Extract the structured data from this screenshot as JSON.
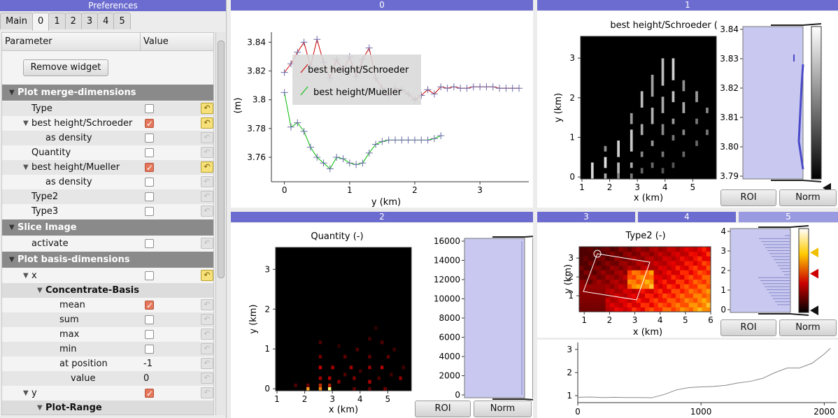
{
  "prefs": {
    "title": "Preferences",
    "tabs": [
      "Main",
      "0",
      "1",
      "2",
      "3",
      "4",
      "5"
    ],
    "active_tab": "0",
    "header": {
      "param": "Parameter",
      "value": "Value"
    },
    "remove_button": "Remove widget",
    "rows": [
      {
        "label": "Plot merge-dimensions",
        "kind": "section"
      },
      {
        "label": "Type",
        "kind": "item",
        "checked": false,
        "undo": true
      },
      {
        "label": "best height/Schroeder",
        "kind": "item",
        "checked": true,
        "undo": true,
        "expand": true
      },
      {
        "label": "as density",
        "kind": "item",
        "checked": false,
        "undo": false
      },
      {
        "label": "Quantity",
        "kind": "item",
        "checked": false,
        "undo": false
      },
      {
        "label": "best height/Mueller",
        "kind": "item",
        "checked": true,
        "undo": true,
        "expand": true
      },
      {
        "label": "as density",
        "kind": "item",
        "checked": false,
        "undo": false
      },
      {
        "label": "Type2",
        "kind": "item",
        "checked": false,
        "undo": false
      },
      {
        "label": "Type3",
        "kind": "item",
        "checked": false,
        "undo": false
      },
      {
        "label": "Slice Image",
        "kind": "section"
      },
      {
        "label": "activate",
        "kind": "item",
        "checked": false,
        "undo": false
      },
      {
        "label": "Plot basis-dimensions",
        "kind": "section"
      },
      {
        "label": "x",
        "kind": "item",
        "checked": false,
        "undo": true,
        "expand": true
      },
      {
        "label": "Concentrate-Basis",
        "kind": "subsec"
      },
      {
        "label": "mean",
        "kind": "item",
        "checked": true,
        "undo": false
      },
      {
        "label": "sum",
        "kind": "item",
        "checked": false,
        "undo": false
      },
      {
        "label": "max",
        "kind": "item",
        "checked": false,
        "undo": false
      },
      {
        "label": "min",
        "kind": "item",
        "checked": false,
        "undo": false
      },
      {
        "label": "at position",
        "kind": "value",
        "value": "-1"
      },
      {
        "label": "value",
        "kind": "value",
        "value": "0"
      },
      {
        "label": "y",
        "kind": "item",
        "checked": true,
        "undo": false,
        "expand": true
      },
      {
        "label": "Plot-Range",
        "kind": "subsec"
      }
    ]
  },
  "panels": {
    "p0": {
      "title": "0"
    },
    "p1": {
      "title": "1",
      "plot_title": "best height/Schroeder (m)",
      "xlabel": "x (km)",
      "ylabel": "y (km)",
      "xticks": [
        "1",
        "2",
        "3",
        "4",
        "5"
      ],
      "yticks": [
        "0",
        "1",
        "2",
        "3"
      ],
      "cbar_ticks": [
        "3.84",
        "3.83",
        "3.82",
        "3.81",
        "3.80",
        "3.79"
      ],
      "roi": "ROI",
      "norm": "Norm"
    },
    "p2": {
      "title": "2",
      "plot_title": "Quantity (-)",
      "xlabel": "x (km)",
      "ylabel": "y (km)",
      "xticks": [
        "1",
        "2",
        "3",
        "4",
        "5"
      ],
      "yticks": [
        "0",
        "1",
        "2",
        "3"
      ],
      "cbar_ticks": [
        "16000",
        "14000",
        "12000",
        "10000",
        "8000",
        "6000",
        "4000",
        "2000",
        "0"
      ],
      "roi": "ROI",
      "norm": "Norm"
    },
    "p3": {
      "tabs": [
        "3",
        "4",
        "5"
      ],
      "plot_title": "Type2 (-)",
      "xlabel": "x (km)",
      "ylabel": "y (km)",
      "xticks": [
        "1",
        "2",
        "3",
        "4",
        "5",
        "6"
      ],
      "yticks": [
        "1",
        "2",
        "3"
      ],
      "cbar_ticks": [
        "4",
        "3",
        "2",
        "1",
        "0"
      ],
      "roi": "ROI",
      "norm": "Norm"
    },
    "p5": {
      "xticks": [
        "0",
        "1000",
        "2000"
      ],
      "yticks": [
        "1",
        "2",
        "3"
      ]
    }
  },
  "chart_data": [
    {
      "type": "line",
      "xlabel": "y (km)",
      "ylabel": "(m)",
      "xlim": [
        -0.2,
        3.75
      ],
      "ylim": [
        3.743,
        3.847
      ],
      "xticks": [
        "0",
        "1",
        "2",
        "3"
      ],
      "yticks": [
        "3.84",
        "3.82",
        "3.8",
        "3.78",
        "3.76"
      ],
      "legend_position": "top-left",
      "series": [
        {
          "name": "best height/Schroeder",
          "color": "#cc0000",
          "x": [
            0,
            0.1,
            0.2,
            0.3,
            0.4,
            0.5,
            0.6,
            0.7,
            0.8,
            0.9,
            1.0,
            1.1,
            1.2,
            1.3,
            1.4,
            1.5,
            1.6,
            1.7,
            1.8,
            1.9,
            2.0,
            2.1,
            2.2,
            2.3,
            2.4,
            2.5,
            2.6,
            2.7,
            2.8,
            2.9,
            3.0,
            3.1,
            3.2,
            3.3,
            3.4,
            3.5,
            3.6
          ],
          "y": [
            3.819,
            3.825,
            3.833,
            3.84,
            3.823,
            3.842,
            3.826,
            3.815,
            3.828,
            3.82,
            3.83,
            3.816,
            3.828,
            3.836,
            3.815,
            3.808,
            3.803,
            3.808,
            3.807,
            3.804,
            3.8,
            3.803,
            3.807,
            3.804,
            3.809,
            3.808,
            3.809,
            3.808,
            3.808,
            3.809,
            3.809,
            3.809,
            3.809,
            3.808,
            3.808,
            3.808,
            3.808
          ]
        },
        {
          "name": "best height/Mueller",
          "color": "#00bb00",
          "x": [
            0,
            0.1,
            0.2,
            0.3,
            0.4,
            0.5,
            0.6,
            0.7,
            0.8,
            0.9,
            1.0,
            1.1,
            1.2,
            1.3,
            1.4,
            1.5,
            1.6,
            1.7,
            1.8,
            1.9,
            2.0,
            2.1,
            2.2,
            2.3,
            2.4
          ],
          "y": [
            3.805,
            3.781,
            3.784,
            3.778,
            3.767,
            3.76,
            3.756,
            3.752,
            3.76,
            3.759,
            3.756,
            3.755,
            3.756,
            3.763,
            3.769,
            3.771,
            3.772,
            3.772,
            3.772,
            3.772,
            3.772,
            3.772,
            3.772,
            3.773,
            3.775
          ]
        }
      ]
    },
    {
      "type": "line",
      "xlim": [
        0,
        2100
      ],
      "ylim": [
        0.7,
        3.3
      ],
      "xticks": [
        "0",
        "1000",
        "2000"
      ],
      "yticks": [
        "1",
        "2",
        "3"
      ],
      "series": [
        {
          "color": "#888888",
          "x": [
            0,
            100,
            200,
            300,
            400,
            500,
            600,
            700,
            800,
            900,
            1000,
            1100,
            1200,
            1300,
            1400,
            1500,
            1600,
            1700,
            1800,
            1900,
            2000,
            2050
          ],
          "y": [
            0.93,
            0.94,
            0.92,
            0.93,
            0.92,
            0.92,
            0.91,
            1.05,
            1.25,
            1.35,
            1.38,
            1.4,
            1.45,
            1.55,
            1.62,
            1.75,
            2.0,
            2.2,
            2.2,
            2.4,
            2.8,
            3.05
          ]
        }
      ]
    }
  ]
}
